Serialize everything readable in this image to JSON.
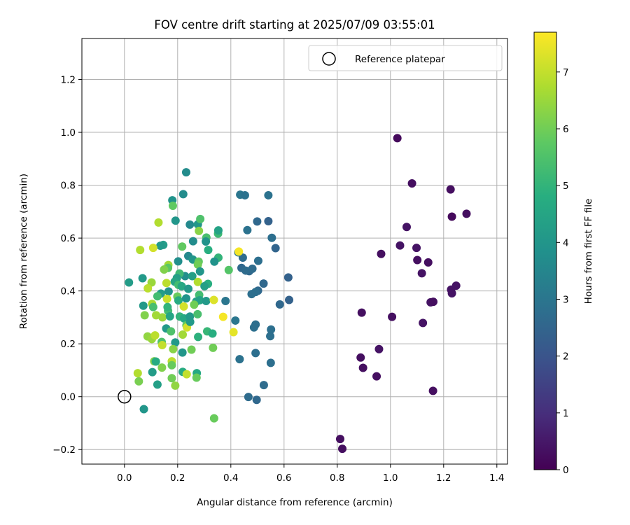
{
  "chart_data": {
    "type": "scatter",
    "title": "FOV centre drift starting at 2025/07/09 03:55:01",
    "xlabel": "Angular distance from reference (arcmin)",
    "ylabel": "Rotation from reference (arcmin)",
    "xlim": [
      -0.16,
      1.44
    ],
    "ylim": [
      -0.255,
      1.355
    ],
    "xticks": [
      0.0,
      0.2,
      0.4,
      0.6,
      0.8,
      1.0,
      1.2,
      1.4
    ],
    "xtick_labels": [
      "0.0",
      "0.2",
      "0.4",
      "0.6",
      "0.8",
      "1.0",
      "1.2",
      "1.4"
    ],
    "yticks": [
      -0.2,
      0.0,
      0.2,
      0.4,
      0.6,
      0.8,
      1.0,
      1.2
    ],
    "ytick_labels": [
      "−0.2",
      "0.0",
      "0.2",
      "0.4",
      "0.6",
      "0.8",
      "1.0",
      "1.2"
    ],
    "grid": true,
    "legend": {
      "position": "top-right",
      "entries": [
        "Reference platepar"
      ]
    },
    "reference_point": {
      "x": 0.0,
      "y": 0.0
    },
    "colorbar": {
      "label": "Hours from first FF file",
      "min": 0,
      "max": 7.7,
      "ticks": [
        0,
        1,
        2,
        3,
        4,
        5,
        6,
        7
      ],
      "tick_labels": [
        "0",
        "1",
        "2",
        "3",
        "4",
        "5",
        "6",
        "7"
      ],
      "colormap": "viridis"
    },
    "points": [
      {
        "x": 1.026,
        "y": 0.978,
        "c": 0.2
      },
      {
        "x": 1.081,
        "y": 0.807,
        "c": 0.3
      },
      {
        "x": 1.226,
        "y": 0.784,
        "c": 0.3
      },
      {
        "x": 1.231,
        "y": 0.681,
        "c": 0.2
      },
      {
        "x": 1.286,
        "y": 0.692,
        "c": 0.3
      },
      {
        "x": 1.061,
        "y": 0.642,
        "c": 0.4
      },
      {
        "x": 1.036,
        "y": 0.572,
        "c": 0.4
      },
      {
        "x": 1.098,
        "y": 0.563,
        "c": 0.4
      },
      {
        "x": 0.965,
        "y": 0.54,
        "c": 0.3
      },
      {
        "x": 1.101,
        "y": 0.517,
        "c": 0.3
      },
      {
        "x": 1.142,
        "y": 0.508,
        "c": 0.3
      },
      {
        "x": 1.118,
        "y": 0.467,
        "c": 0.4
      },
      {
        "x": 1.247,
        "y": 0.42,
        "c": 0.4
      },
      {
        "x": 1.228,
        "y": 0.405,
        "c": 0.4
      },
      {
        "x": 1.231,
        "y": 0.391,
        "c": 0.4
      },
      {
        "x": 1.151,
        "y": 0.357,
        "c": 0.4
      },
      {
        "x": 1.161,
        "y": 0.359,
        "c": 0.3
      },
      {
        "x": 0.892,
        "y": 0.318,
        "c": 0.3
      },
      {
        "x": 1.006,
        "y": 0.302,
        "c": 0.3
      },
      {
        "x": 1.122,
        "y": 0.279,
        "c": 0.4
      },
      {
        "x": 0.957,
        "y": 0.18,
        "c": 0.4
      },
      {
        "x": 0.888,
        "y": 0.148,
        "c": 0.3
      },
      {
        "x": 0.897,
        "y": 0.109,
        "c": 0.3
      },
      {
        "x": 0.948,
        "y": 0.077,
        "c": 0.3
      },
      {
        "x": 1.16,
        "y": 0.022,
        "c": 0.3
      },
      {
        "x": 0.811,
        "y": -0.16,
        "c": 0.3
      },
      {
        "x": 0.819,
        "y": -0.197,
        "c": 0.3
      },
      {
        "x": 0.435,
        "y": 0.764,
        "c": 3.0
      },
      {
        "x": 0.453,
        "y": 0.762,
        "c": 2.9
      },
      {
        "x": 0.541,
        "y": 0.762,
        "c": 2.9
      },
      {
        "x": 0.541,
        "y": 0.664,
        "c": 2.4
      },
      {
        "x": 0.499,
        "y": 0.663,
        "c": 2.6
      },
      {
        "x": 0.462,
        "y": 0.63,
        "c": 2.9
      },
      {
        "x": 0.554,
        "y": 0.601,
        "c": 2.8
      },
      {
        "x": 0.568,
        "y": 0.562,
        "c": 2.5
      },
      {
        "x": 0.428,
        "y": 0.546,
        "c": 3.0
      },
      {
        "x": 0.445,
        "y": 0.526,
        "c": 2.7
      },
      {
        "x": 0.503,
        "y": 0.514,
        "c": 2.8
      },
      {
        "x": 0.44,
        "y": 0.487,
        "c": 2.6
      },
      {
        "x": 0.469,
        "y": 0.475,
        "c": 2.6
      },
      {
        "x": 0.481,
        "y": 0.484,
        "c": 2.7
      },
      {
        "x": 0.456,
        "y": 0.477,
        "c": 2.7
      },
      {
        "x": 0.616,
        "y": 0.451,
        "c": 2.4
      },
      {
        "x": 0.523,
        "y": 0.428,
        "c": 2.6
      },
      {
        "x": 0.502,
        "y": 0.401,
        "c": 2.6
      },
      {
        "x": 0.493,
        "y": 0.396,
        "c": 2.8
      },
      {
        "x": 0.478,
        "y": 0.388,
        "c": 2.8
      },
      {
        "x": 0.619,
        "y": 0.366,
        "c": 2.4
      },
      {
        "x": 0.584,
        "y": 0.349,
        "c": 2.6
      },
      {
        "x": 0.38,
        "y": 0.362,
        "c": 3.0
      },
      {
        "x": 0.417,
        "y": 0.288,
        "c": 3.0
      },
      {
        "x": 0.493,
        "y": 0.273,
        "c": 2.8
      },
      {
        "x": 0.487,
        "y": 0.262,
        "c": 2.8
      },
      {
        "x": 0.551,
        "y": 0.254,
        "c": 2.8
      },
      {
        "x": 0.548,
        "y": 0.229,
        "c": 2.8
      },
      {
        "x": 0.493,
        "y": 0.165,
        "c": 2.8
      },
      {
        "x": 0.433,
        "y": 0.142,
        "c": 2.9
      },
      {
        "x": 0.55,
        "y": 0.128,
        "c": 2.8
      },
      {
        "x": 0.524,
        "y": 0.044,
        "c": 2.7
      },
      {
        "x": 0.466,
        "y": -0.001,
        "c": 2.7
      },
      {
        "x": 0.497,
        "y": -0.012,
        "c": 2.6
      },
      {
        "x": 0.232,
        "y": 0.849,
        "c": 3.7
      },
      {
        "x": 0.221,
        "y": 0.766,
        "c": 3.7
      },
      {
        "x": 0.18,
        "y": 0.743,
        "c": 3.9
      },
      {
        "x": 0.182,
        "y": 0.722,
        "c": 5.8
      },
      {
        "x": 0.192,
        "y": 0.666,
        "c": 4.0
      },
      {
        "x": 0.246,
        "y": 0.651,
        "c": 3.6
      },
      {
        "x": 0.276,
        "y": 0.652,
        "c": 4.0
      },
      {
        "x": 0.285,
        "y": 0.672,
        "c": 5.5
      },
      {
        "x": 0.128,
        "y": 0.659,
        "c": 6.8
      },
      {
        "x": 0.146,
        "y": 0.574,
        "c": 4.2
      },
      {
        "x": 0.135,
        "y": 0.571,
        "c": 4.1
      },
      {
        "x": 0.108,
        "y": 0.563,
        "c": 7.2
      },
      {
        "x": 0.059,
        "y": 0.555,
        "c": 6.8
      },
      {
        "x": 0.217,
        "y": 0.568,
        "c": 5.8
      },
      {
        "x": 0.308,
        "y": 0.602,
        "c": 5.4
      },
      {
        "x": 0.306,
        "y": 0.587,
        "c": 3.9
      },
      {
        "x": 0.258,
        "y": 0.588,
        "c": 3.7
      },
      {
        "x": 0.315,
        "y": 0.555,
        "c": 4.8
      },
      {
        "x": 0.352,
        "y": 0.617,
        "c": 5.2
      },
      {
        "x": 0.353,
        "y": 0.629,
        "c": 4.4
      },
      {
        "x": 0.28,
        "y": 0.627,
        "c": 6.3
      },
      {
        "x": 0.353,
        "y": 0.526,
        "c": 5.0
      },
      {
        "x": 0.24,
        "y": 0.532,
        "c": 3.6
      },
      {
        "x": 0.257,
        "y": 0.519,
        "c": 4.0
      },
      {
        "x": 0.279,
        "y": 0.511,
        "c": 5.8
      },
      {
        "x": 0.276,
        "y": 0.5,
        "c": 6.0
      },
      {
        "x": 0.202,
        "y": 0.512,
        "c": 3.8
      },
      {
        "x": 0.165,
        "y": 0.498,
        "c": 6.6
      },
      {
        "x": 0.164,
        "y": 0.487,
        "c": 5.7
      },
      {
        "x": 0.149,
        "y": 0.481,
        "c": 6.2
      },
      {
        "x": 0.068,
        "y": 0.448,
        "c": 4.1
      },
      {
        "x": 0.017,
        "y": 0.432,
        "c": 4.2
      },
      {
        "x": 0.228,
        "y": 0.456,
        "c": 3.8
      },
      {
        "x": 0.255,
        "y": 0.456,
        "c": 4.3
      },
      {
        "x": 0.284,
        "y": 0.474,
        "c": 4.0
      },
      {
        "x": 0.392,
        "y": 0.479,
        "c": 5.6
      },
      {
        "x": 0.43,
        "y": 0.549,
        "c": 7.6
      },
      {
        "x": 0.338,
        "y": 0.511,
        "c": 3.9
      },
      {
        "x": 0.207,
        "y": 0.466,
        "c": 5.2
      },
      {
        "x": 0.197,
        "y": 0.449,
        "c": 4.3
      },
      {
        "x": 0.189,
        "y": 0.435,
        "c": 4.5
      },
      {
        "x": 0.203,
        "y": 0.423,
        "c": 5.3
      },
      {
        "x": 0.158,
        "y": 0.43,
        "c": 6.9
      },
      {
        "x": 0.102,
        "y": 0.432,
        "c": 6.5
      },
      {
        "x": 0.088,
        "y": 0.41,
        "c": 6.9
      },
      {
        "x": 0.215,
        "y": 0.418,
        "c": 4.6
      },
      {
        "x": 0.24,
        "y": 0.408,
        "c": 4.1
      },
      {
        "x": 0.276,
        "y": 0.434,
        "c": 6.8
      },
      {
        "x": 0.314,
        "y": 0.427,
        "c": 4.8
      },
      {
        "x": 0.301,
        "y": 0.418,
        "c": 4.3
      },
      {
        "x": 0.166,
        "y": 0.398,
        "c": 3.9
      },
      {
        "x": 0.137,
        "y": 0.39,
        "c": 4.2
      },
      {
        "x": 0.124,
        "y": 0.38,
        "c": 5.3
      },
      {
        "x": 0.16,
        "y": 0.37,
        "c": 7.1
      },
      {
        "x": 0.199,
        "y": 0.379,
        "c": 5.9
      },
      {
        "x": 0.203,
        "y": 0.364,
        "c": 4.7
      },
      {
        "x": 0.232,
        "y": 0.372,
        "c": 3.9
      },
      {
        "x": 0.281,
        "y": 0.385,
        "c": 5.3
      },
      {
        "x": 0.283,
        "y": 0.365,
        "c": 4.4
      },
      {
        "x": 0.27,
        "y": 0.36,
        "c": 4.3
      },
      {
        "x": 0.307,
        "y": 0.362,
        "c": 4.1
      },
      {
        "x": 0.336,
        "y": 0.366,
        "c": 7.3
      },
      {
        "x": 0.071,
        "y": 0.344,
        "c": 4.1
      },
      {
        "x": 0.104,
        "y": 0.351,
        "c": 6.7
      },
      {
        "x": 0.108,
        "y": 0.339,
        "c": 5.4
      },
      {
        "x": 0.164,
        "y": 0.325,
        "c": 5.3
      },
      {
        "x": 0.162,
        "y": 0.339,
        "c": 5.0
      },
      {
        "x": 0.223,
        "y": 0.341,
        "c": 7.2
      },
      {
        "x": 0.262,
        "y": 0.348,
        "c": 6.0
      },
      {
        "x": 0.076,
        "y": 0.308,
        "c": 6.2
      },
      {
        "x": 0.119,
        "y": 0.308,
        "c": 6.6
      },
      {
        "x": 0.143,
        "y": 0.3,
        "c": 6.5
      },
      {
        "x": 0.171,
        "y": 0.304,
        "c": 4.5
      },
      {
        "x": 0.208,
        "y": 0.303,
        "c": 5.0
      },
      {
        "x": 0.224,
        "y": 0.296,
        "c": 4.6
      },
      {
        "x": 0.246,
        "y": 0.303,
        "c": 4.1
      },
      {
        "x": 0.275,
        "y": 0.312,
        "c": 5.4
      },
      {
        "x": 0.371,
        "y": 0.302,
        "c": 7.6
      },
      {
        "x": 0.157,
        "y": 0.258,
        "c": 4.1
      },
      {
        "x": 0.175,
        "y": 0.247,
        "c": 5.5
      },
      {
        "x": 0.233,
        "y": 0.27,
        "c": 5.8
      },
      {
        "x": 0.235,
        "y": 0.262,
        "c": 7.2
      },
      {
        "x": 0.247,
        "y": 0.283,
        "c": 4.1
      },
      {
        "x": 0.311,
        "y": 0.247,
        "c": 5.1
      },
      {
        "x": 0.331,
        "y": 0.239,
        "c": 4.8
      },
      {
        "x": 0.41,
        "y": 0.244,
        "c": 7.4
      },
      {
        "x": 0.087,
        "y": 0.228,
        "c": 6.4
      },
      {
        "x": 0.103,
        "y": 0.218,
        "c": 6.5
      },
      {
        "x": 0.115,
        "y": 0.232,
        "c": 6.9
      },
      {
        "x": 0.14,
        "y": 0.207,
        "c": 5.5
      },
      {
        "x": 0.142,
        "y": 0.195,
        "c": 7.0
      },
      {
        "x": 0.191,
        "y": 0.205,
        "c": 4.1
      },
      {
        "x": 0.219,
        "y": 0.235,
        "c": 6.6
      },
      {
        "x": 0.277,
        "y": 0.226,
        "c": 4.9
      },
      {
        "x": 0.183,
        "y": 0.18,
        "c": 6.3
      },
      {
        "x": 0.218,
        "y": 0.167,
        "c": 4.0
      },
      {
        "x": 0.252,
        "y": 0.178,
        "c": 6.0
      },
      {
        "x": 0.333,
        "y": 0.185,
        "c": 6.0
      },
      {
        "x": 0.112,
        "y": 0.134,
        "c": 6.2
      },
      {
        "x": 0.118,
        "y": 0.133,
        "c": 4.7
      },
      {
        "x": 0.141,
        "y": 0.11,
        "c": 6.2
      },
      {
        "x": 0.178,
        "y": 0.134,
        "c": 6.9
      },
      {
        "x": 0.178,
        "y": 0.119,
        "c": 5.9
      },
      {
        "x": 0.105,
        "y": 0.093,
        "c": 4.2
      },
      {
        "x": 0.05,
        "y": 0.089,
        "c": 6.8
      },
      {
        "x": 0.219,
        "y": 0.094,
        "c": 4.7
      },
      {
        "x": 0.234,
        "y": 0.085,
        "c": 7.0
      },
      {
        "x": 0.272,
        "y": 0.089,
        "c": 4.6
      },
      {
        "x": 0.271,
        "y": 0.072,
        "c": 5.9
      },
      {
        "x": 0.178,
        "y": 0.07,
        "c": 6.0
      },
      {
        "x": 0.054,
        "y": 0.058,
        "c": 6.1
      },
      {
        "x": 0.124,
        "y": 0.046,
        "c": 4.3
      },
      {
        "x": 0.191,
        "y": 0.042,
        "c": 6.4
      },
      {
        "x": 0.073,
        "y": -0.047,
        "c": 4.0
      },
      {
        "x": 0.337,
        "y": -0.082,
        "c": 5.9
      }
    ]
  }
}
